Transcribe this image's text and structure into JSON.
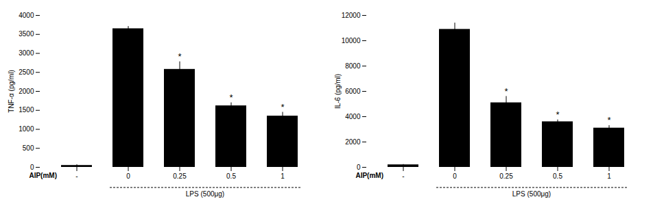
{
  "chart_data": [
    {
      "type": "bar",
      "categories": [
        "-",
        "0",
        "0.25",
        "0.5",
        "1"
      ],
      "values": [
        50,
        3650,
        2580,
        1620,
        1350
      ],
      "errors": [
        20,
        60,
        200,
        80,
        100
      ],
      "color": "#000000",
      "ylabel": "TNF-α (pg/ml)",
      "xlabel": "AIP(mM)",
      "ylim": [
        0,
        4000
      ],
      "yticks": [
        0,
        500,
        1000,
        1500,
        2000,
        2500,
        3000,
        3500,
        4000
      ],
      "grid": false,
      "annotations": [
        {
          "text": "*",
          "category": "0.25"
        },
        {
          "text": "*",
          "category": "0.5"
        },
        {
          "text": "*",
          "category": "1"
        },
        {
          "text": "LPS (500μg)",
          "span": [
            "0",
            "1"
          ]
        }
      ]
    },
    {
      "type": "bar",
      "categories": [
        "-",
        "0",
        "0.25",
        "0.5",
        "1"
      ],
      "values": [
        200,
        10900,
        5100,
        3600,
        3100
      ],
      "errors": [
        30,
        500,
        500,
        150,
        200
      ],
      "color": "#000000",
      "ylabel": "IL-6 (pg/ml)",
      "xlabel": "AIP(mM)",
      "ylim": [
        0,
        12000
      ],
      "yticks": [
        0,
        2000,
        4000,
        6000,
        8000,
        10000,
        12000
      ],
      "grid": false,
      "annotations": [
        {
          "text": "*",
          "category": "0.25"
        },
        {
          "text": "*",
          "category": "0.5"
        },
        {
          "text": "*",
          "category": "1"
        },
        {
          "text": "LPS (500μg)",
          "span": [
            "0",
            "1"
          ]
        }
      ]
    }
  ]
}
